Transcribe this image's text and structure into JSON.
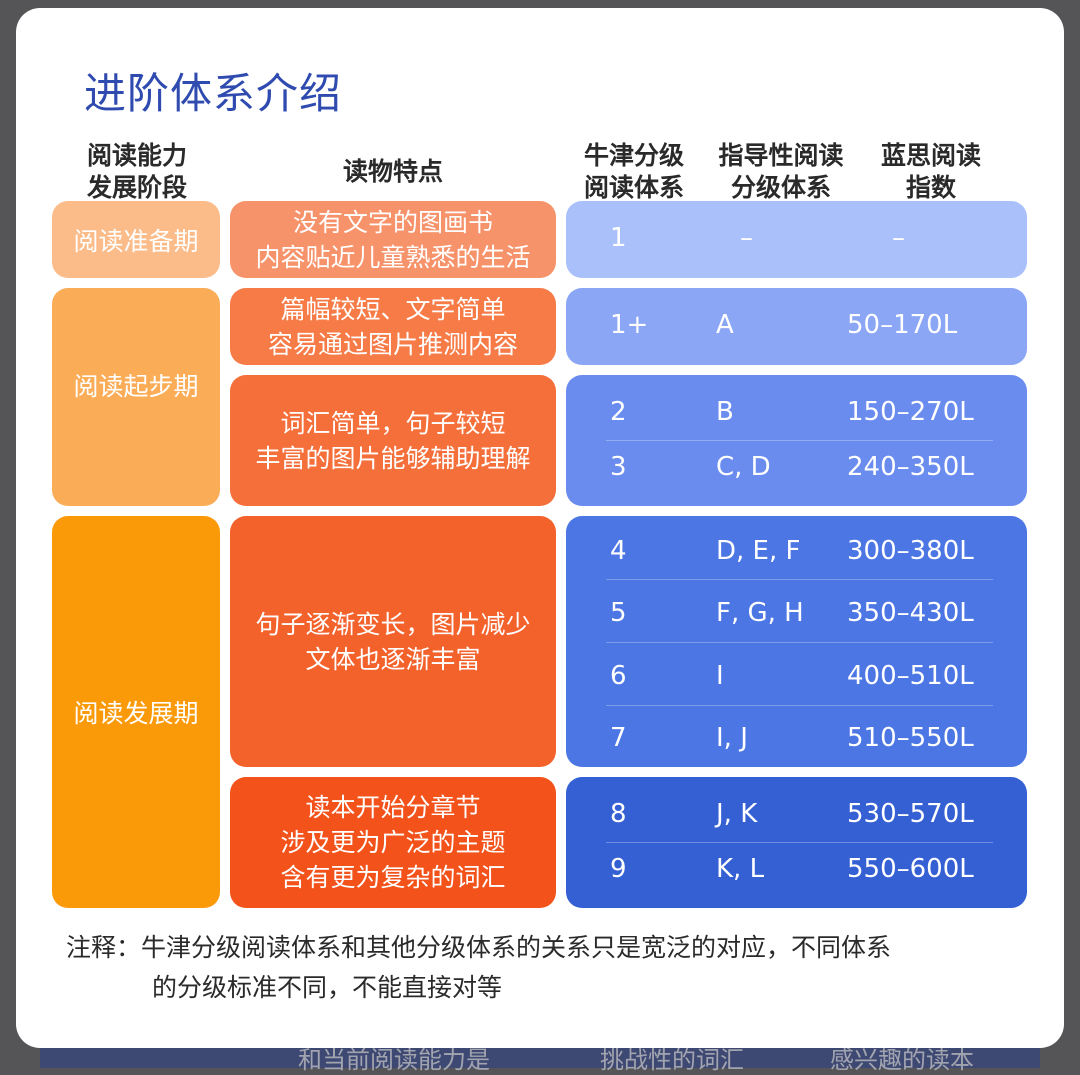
{
  "background": {
    "texts": [
      "和当前阅读能力是",
      "挑战性的词汇",
      "感兴趣的读本"
    ]
  },
  "title": "进阶体系介绍",
  "headers": {
    "stage_line1": "阅读能力",
    "stage_line2": "发展阶段",
    "features": "读物特点",
    "oxford_line1": "牛津分级",
    "oxford_line2": "阅读体系",
    "guided_line1": "指导性阅读",
    "guided_line2": "分级体系",
    "lexile_line1": "蓝思阅读",
    "lexile_line2": "指数"
  },
  "stages": [
    {
      "label": "阅读准备期",
      "color": "#fbbc8a"
    },
    {
      "label": "阅读起步期",
      "color": "#fbac57"
    },
    {
      "label": "阅读发展期",
      "color": "#fb9a09"
    }
  ],
  "groups": [
    {
      "features": [
        "没有文字的图画书",
        "内容贴近儿童熟悉的生活"
      ],
      "feature_color": "#f7936a",
      "level_color": "#a9c0fa",
      "rows": [
        {
          "oxford": "1",
          "guided": "–",
          "lexile": "–"
        }
      ]
    },
    {
      "features": [
        "篇幅较短、文字简单",
        "容易通过图片推测内容"
      ],
      "feature_color": "#f67b47",
      "level_color": "#8aa6f5",
      "rows": [
        {
          "oxford": "1+",
          "guided": "A",
          "lexile": "50–170L"
        }
      ]
    },
    {
      "features": [
        "词汇简单，句子较短",
        "丰富的图片能够辅助理解"
      ],
      "feature_color": "#f56f3a",
      "level_color": "#6a8cee",
      "rows": [
        {
          "oxford": "2",
          "guided": "B",
          "lexile": "150–270L"
        },
        {
          "oxford": "3",
          "guided": "C, D",
          "lexile": "240–350L"
        }
      ]
    },
    {
      "features": [
        "句子逐渐变长，图片减少",
        "文体也逐渐丰富"
      ],
      "feature_color": "#f4622c",
      "level_color": "#4c76e3",
      "rows": [
        {
          "oxford": "4",
          "guided": "D, E, F",
          "lexile": "300–380L"
        },
        {
          "oxford": "5",
          "guided": "F, G, H",
          "lexile": "350–430L"
        },
        {
          "oxford": "6",
          "guided": "I",
          "lexile": "400–510L"
        },
        {
          "oxford": "7",
          "guided": "I, J",
          "lexile": "510–550L"
        }
      ]
    },
    {
      "features": [
        "读本开始分章节",
        "涉及更为广泛的主题",
        "含有更为复杂的词汇"
      ],
      "feature_color": "#f3521a",
      "level_color": "#3560d3",
      "rows": [
        {
          "oxford": "8",
          "guided": "J, K",
          "lexile": "530–570L"
        },
        {
          "oxford": "9",
          "guided": "K, L",
          "lexile": "550–600L"
        }
      ]
    }
  ],
  "note": {
    "line1": "注释：牛津分级阅读体系和其他分级体系的关系只是宽泛的对应，不同体系",
    "line2": "的分级标准不同，不能直接对等"
  }
}
